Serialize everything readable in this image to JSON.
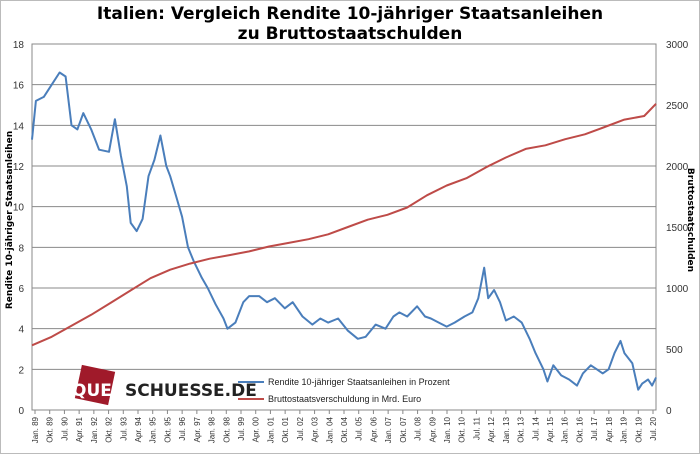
{
  "chart_data": {
    "type": "line",
    "title": "Italien: Vergleich Rendite 10-jähriger Staatsanleihen",
    "subtitle": "zu Bruttostaatschulden",
    "ylabel_left": "Rendite 10-jähriger Staatsanleihen",
    "ylabel_right": "Bruttostaatschulden",
    "ylim_left": [
      0,
      18
    ],
    "ylim_right": [
      0,
      3000
    ],
    "yticks_left": [
      "0",
      "2",
      "4",
      "6",
      "8",
      "10",
      "12",
      "14",
      "16",
      "18"
    ],
    "yticks_right": [
      "0",
      "500",
      "1000",
      "1500",
      "2000",
      "2500",
      "3000"
    ],
    "xlim": [
      1989.0,
      2020.6
    ],
    "xtick_labels": [
      "Jan. 89",
      "Okt. 89",
      "Jul. 90",
      "Apr. 91",
      "Jan. 92",
      "Okt. 92",
      "Jul. 93",
      "Apr. 94",
      "Jan. 95",
      "Okt. 95",
      "Jul. 96",
      "Apr. 97",
      "Jan. 98",
      "Okt. 98",
      "Jul. 99",
      "Apr. 00",
      "Jan. 01",
      "Okt. 01",
      "Jul. 02",
      "Apr. 03",
      "Jan. 04",
      "Okt. 04",
      "Jul. 05",
      "Apr. 06",
      "Jan. 07",
      "Okt. 07",
      "Jul. 08",
      "Apr. 09",
      "Jan. 10",
      "Okt. 10",
      "Jul. 11",
      "Apr. 12",
      "Jan. 13",
      "Okt. 13",
      "Jul. 14",
      "Apr. 15",
      "Jan. 16",
      "Okt. 16",
      "Jul. 17",
      "Apr. 18",
      "Jan. 19",
      "Okt. 19",
      "Jul. 20"
    ],
    "grid": "horizontal",
    "legend_position": "bottom-center",
    "series": [
      {
        "name": "Rendite 10-jähriger Staatsanleihen in Prozent",
        "axis": "left",
        "color": "#4a7ebb",
        "points": [
          [
            1989.0,
            13.3
          ],
          [
            1989.2,
            15.2
          ],
          [
            1989.6,
            15.4
          ],
          [
            1990.0,
            16.0
          ],
          [
            1990.4,
            16.6
          ],
          [
            1990.7,
            16.4
          ],
          [
            1991.0,
            14.0
          ],
          [
            1991.3,
            13.8
          ],
          [
            1991.6,
            14.6
          ],
          [
            1992.0,
            13.8
          ],
          [
            1992.4,
            12.8
          ],
          [
            1992.9,
            12.7
          ],
          [
            1993.2,
            14.3
          ],
          [
            1993.5,
            12.5
          ],
          [
            1993.8,
            11.0
          ],
          [
            1994.0,
            9.2
          ],
          [
            1994.3,
            8.8
          ],
          [
            1994.6,
            9.4
          ],
          [
            1994.9,
            11.5
          ],
          [
            1995.2,
            12.3
          ],
          [
            1995.5,
            13.5
          ],
          [
            1995.8,
            12.0
          ],
          [
            1996.0,
            11.5
          ],
          [
            1996.3,
            10.5
          ],
          [
            1996.6,
            9.5
          ],
          [
            1996.9,
            8.0
          ],
          [
            1997.2,
            7.3
          ],
          [
            1997.6,
            6.5
          ],
          [
            1997.9,
            6.0
          ],
          [
            1998.3,
            5.2
          ],
          [
            1998.7,
            4.5
          ],
          [
            1998.9,
            4.0
          ],
          [
            1999.3,
            4.3
          ],
          [
            1999.7,
            5.3
          ],
          [
            2000.0,
            5.6
          ],
          [
            2000.5,
            5.6
          ],
          [
            2000.9,
            5.3
          ],
          [
            2001.3,
            5.5
          ],
          [
            2001.8,
            5.0
          ],
          [
            2002.2,
            5.3
          ],
          [
            2002.7,
            4.6
          ],
          [
            2003.2,
            4.2
          ],
          [
            2003.6,
            4.5
          ],
          [
            2004.0,
            4.3
          ],
          [
            2004.5,
            4.5
          ],
          [
            2005.0,
            3.9
          ],
          [
            2005.5,
            3.5
          ],
          [
            2005.9,
            3.6
          ],
          [
            2006.4,
            4.2
          ],
          [
            2006.9,
            4.0
          ],
          [
            2007.3,
            4.6
          ],
          [
            2007.6,
            4.8
          ],
          [
            2008.0,
            4.6
          ],
          [
            2008.5,
            5.1
          ],
          [
            2008.9,
            4.6
          ],
          [
            2009.2,
            4.5
          ],
          [
            2009.6,
            4.3
          ],
          [
            2010.0,
            4.1
          ],
          [
            2010.4,
            4.3
          ],
          [
            2010.9,
            4.6
          ],
          [
            2011.3,
            4.8
          ],
          [
            2011.6,
            5.5
          ],
          [
            2011.9,
            7.0
          ],
          [
            2012.1,
            5.5
          ],
          [
            2012.4,
            5.9
          ],
          [
            2012.7,
            5.3
          ],
          [
            2013.0,
            4.4
          ],
          [
            2013.4,
            4.6
          ],
          [
            2013.8,
            4.3
          ],
          [
            2014.2,
            3.5
          ],
          [
            2014.5,
            2.8
          ],
          [
            2014.9,
            2.0
          ],
          [
            2015.1,
            1.4
          ],
          [
            2015.4,
            2.2
          ],
          [
            2015.8,
            1.7
          ],
          [
            2016.2,
            1.5
          ],
          [
            2016.6,
            1.2
          ],
          [
            2016.9,
            1.8
          ],
          [
            2017.3,
            2.2
          ],
          [
            2017.6,
            2.0
          ],
          [
            2017.9,
            1.8
          ],
          [
            2018.2,
            2.0
          ],
          [
            2018.5,
            2.8
          ],
          [
            2018.8,
            3.4
          ],
          [
            2019.0,
            2.8
          ],
          [
            2019.4,
            2.3
          ],
          [
            2019.7,
            1.0
          ],
          [
            2019.9,
            1.3
          ],
          [
            2020.2,
            1.5
          ],
          [
            2020.4,
            1.2
          ],
          [
            2020.6,
            1.6
          ]
        ]
      },
      {
        "name": "Bruttostaatsverschuldung in Mrd. Euro",
        "axis": "right",
        "color": "#be4b48",
        "points": [
          [
            1989.0,
            530
          ],
          [
            1990.0,
            600
          ],
          [
            1991.0,
            690
          ],
          [
            1992.0,
            780
          ],
          [
            1993.0,
            880
          ],
          [
            1994.0,
            980
          ],
          [
            1995.0,
            1080
          ],
          [
            1996.0,
            1150
          ],
          [
            1997.0,
            1200
          ],
          [
            1998.0,
            1240
          ],
          [
            1999.0,
            1270
          ],
          [
            2000.0,
            1300
          ],
          [
            2001.0,
            1340
          ],
          [
            2002.0,
            1370
          ],
          [
            2003.0,
            1400
          ],
          [
            2004.0,
            1440
          ],
          [
            2005.0,
            1500
          ],
          [
            2006.0,
            1560
          ],
          [
            2007.0,
            1600
          ],
          [
            2008.0,
            1660
          ],
          [
            2009.0,
            1760
          ],
          [
            2010.0,
            1840
          ],
          [
            2011.0,
            1900
          ],
          [
            2012.0,
            1990
          ],
          [
            2013.0,
            2070
          ],
          [
            2014.0,
            2140
          ],
          [
            2015.0,
            2170
          ],
          [
            2016.0,
            2220
          ],
          [
            2017.0,
            2260
          ],
          [
            2018.0,
            2320
          ],
          [
            2019.0,
            2380
          ],
          [
            2020.0,
            2410
          ],
          [
            2020.6,
            2510
          ]
        ]
      }
    ]
  },
  "logo": {
    "part1": "QUER",
    "part2": "SCHUESSE.DE"
  }
}
